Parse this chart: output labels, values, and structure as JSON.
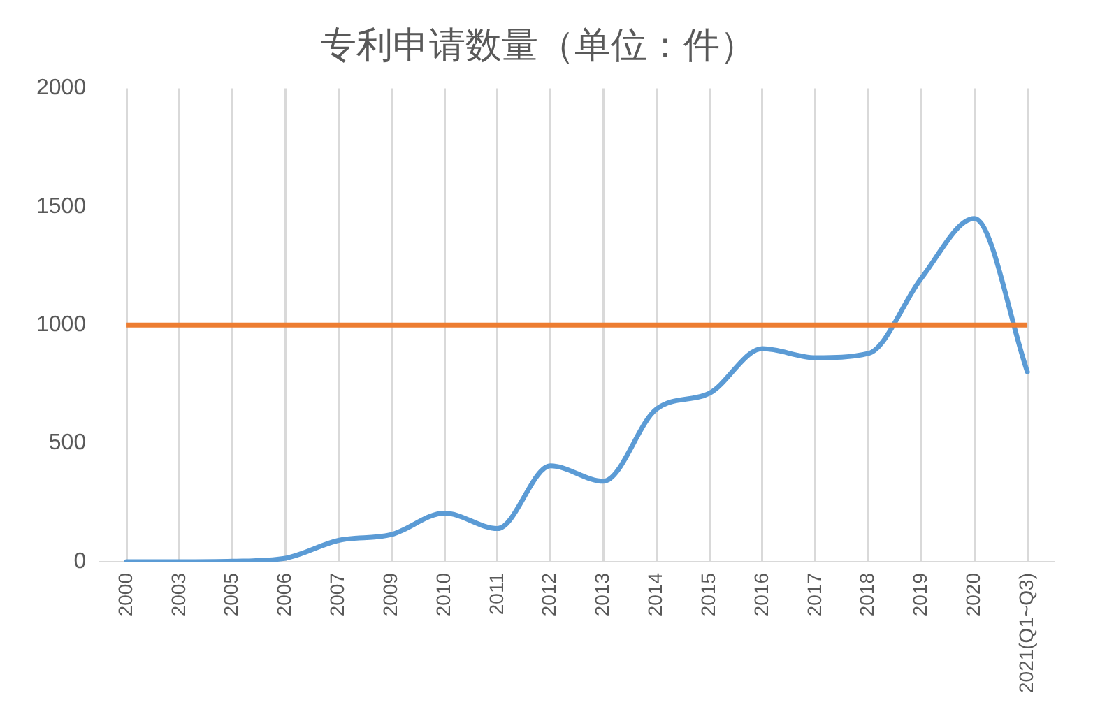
{
  "chart_data": {
    "type": "line",
    "title": "专利申请数量（单位：件）",
    "categories": [
      "2000",
      "2003",
      "2005",
      "2006",
      "2007",
      "2009",
      "2010",
      "2011",
      "2012",
      "2013",
      "2014",
      "2015",
      "2016",
      "2017",
      "2018",
      "2019",
      "2020",
      "2021(Q1~Q3)"
    ],
    "series": [
      {
        "color": "#5b9bd5",
        "values": [
          0,
          0,
          2,
          15,
          90,
          115,
          205,
          140,
          405,
          340,
          645,
          712,
          900,
          862,
          880,
          1198,
          1450,
          802
        ]
      }
    ],
    "ref_lines": [
      {
        "axis": "y",
        "value": 1000,
        "color": "#ed7d31"
      }
    ],
    "ylim": [
      0,
      2000
    ],
    "yticks": [
      0,
      500,
      1000,
      1500,
      2000
    ],
    "grid": "x",
    "legend": false,
    "marker": "none",
    "line_style": "solid"
  }
}
